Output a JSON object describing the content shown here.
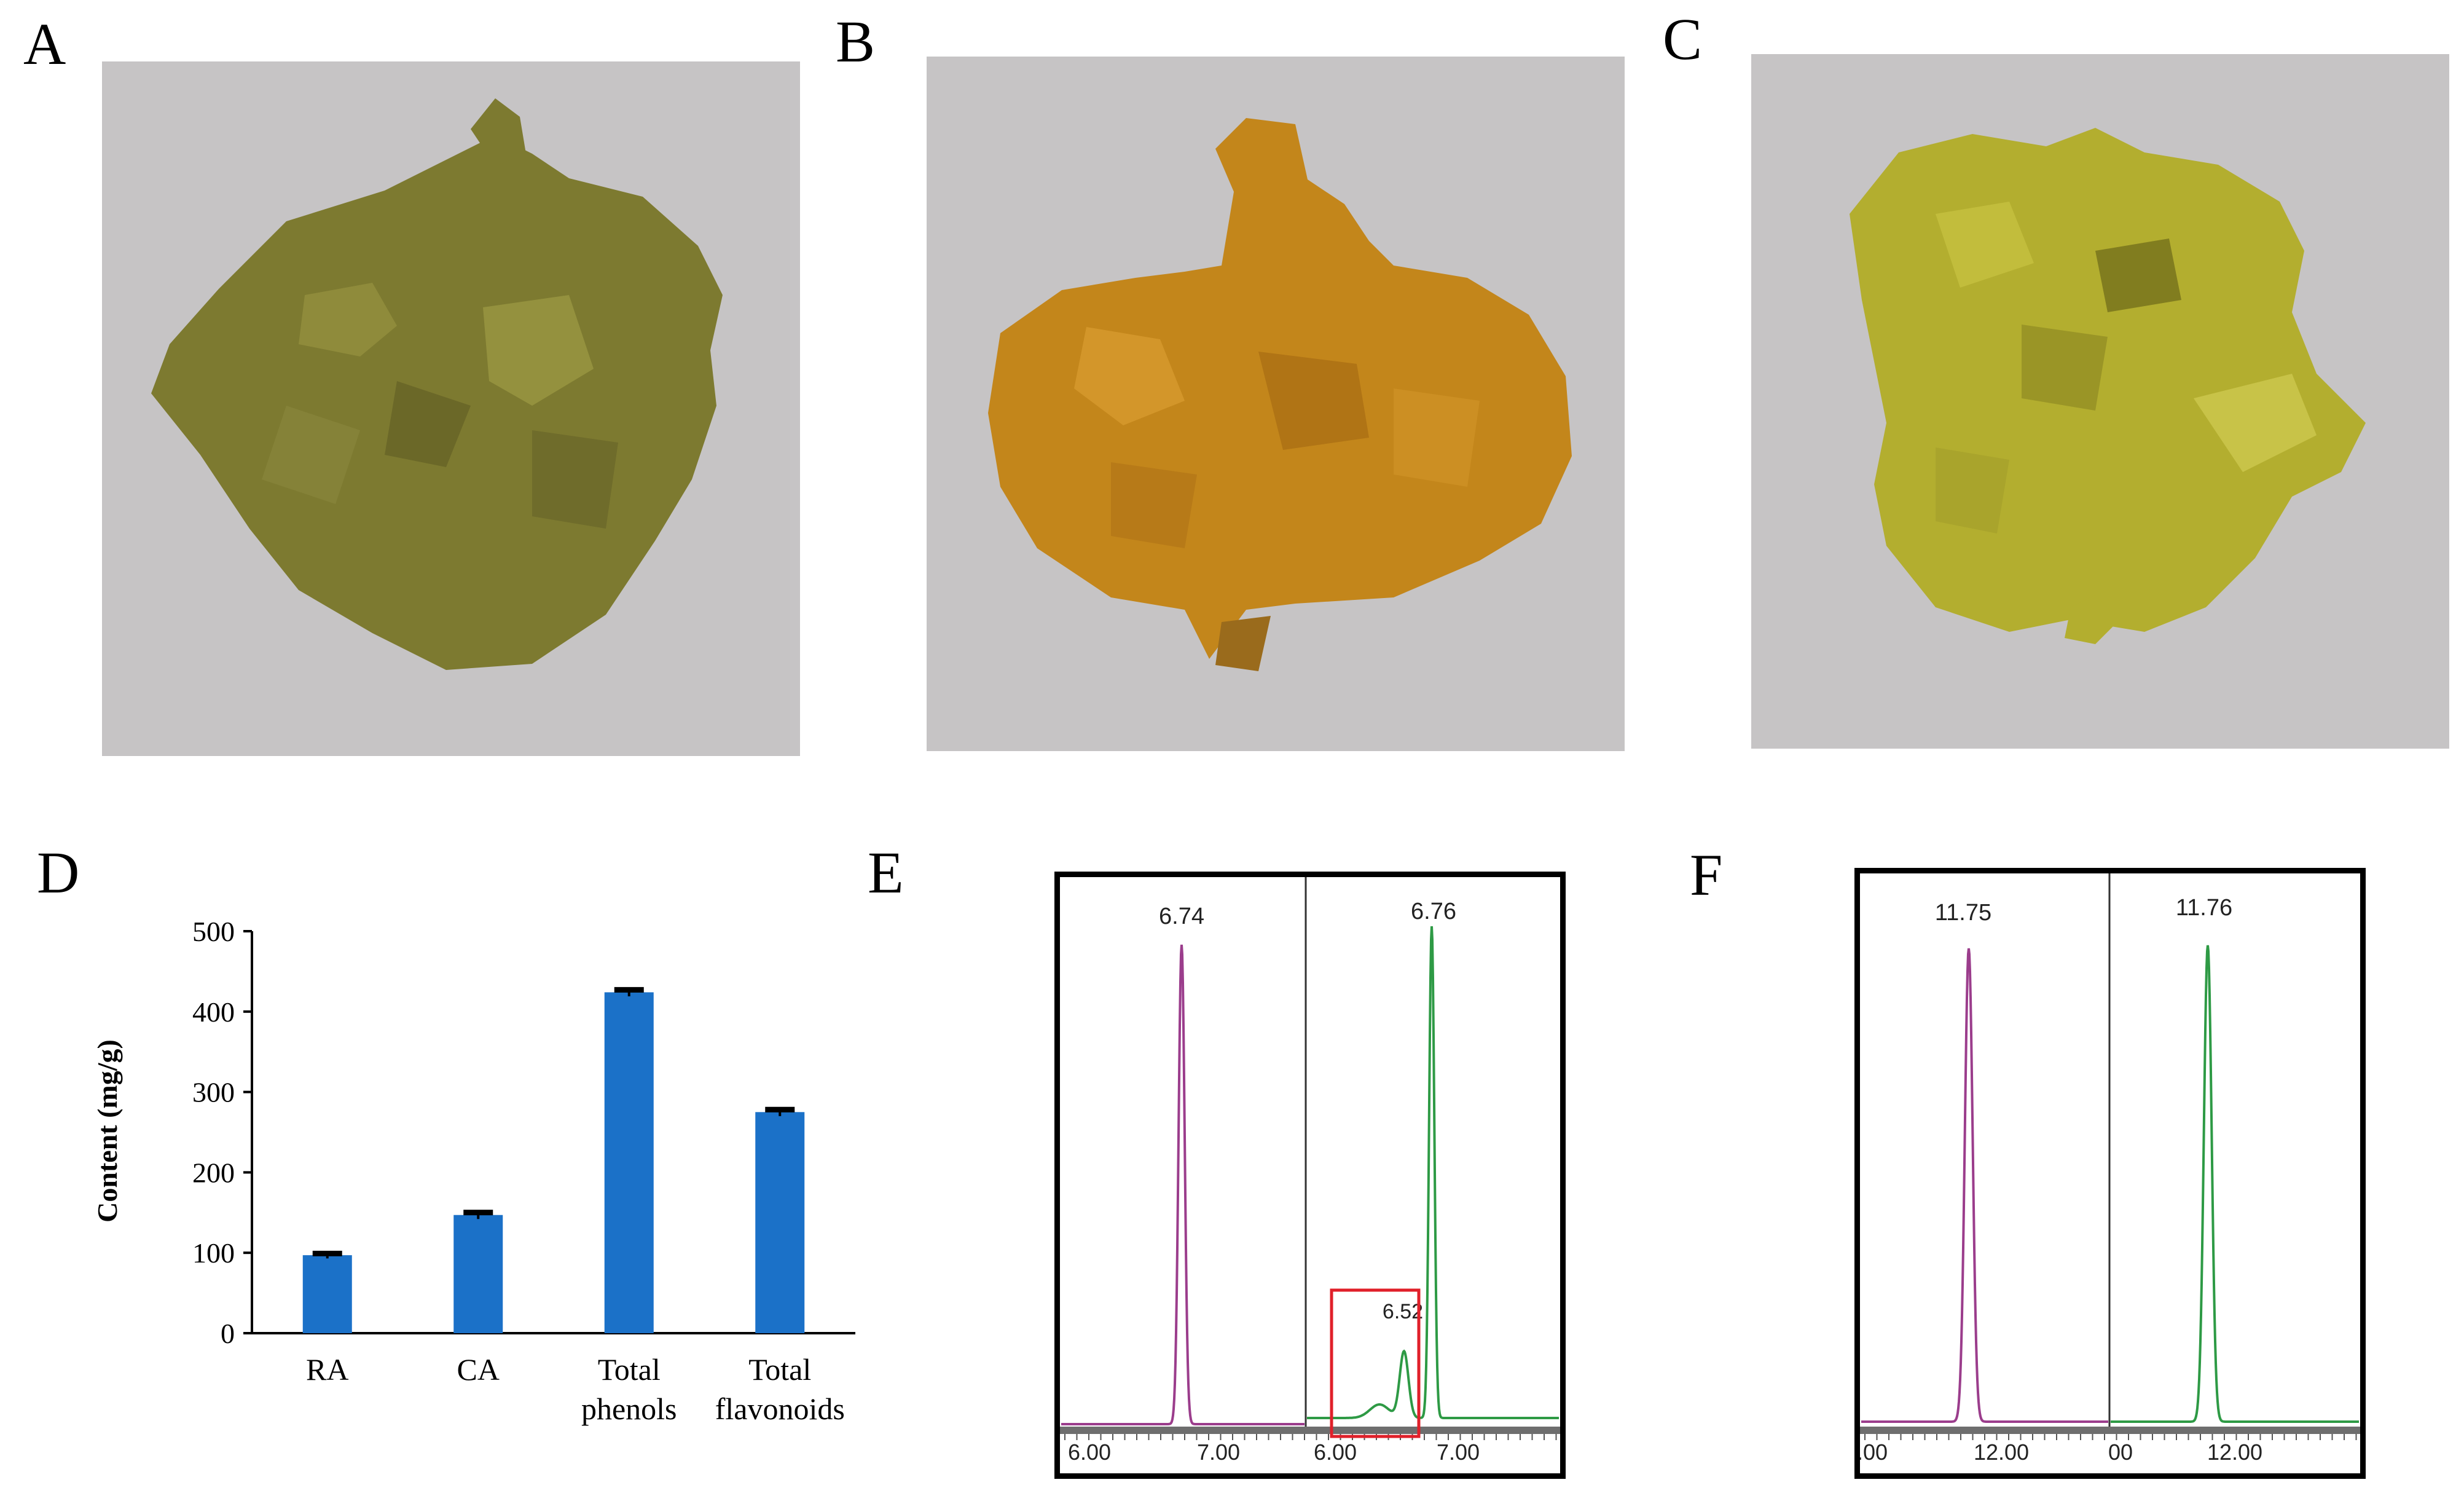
{
  "panels": {
    "a": "A",
    "b": "B",
    "c": "C",
    "d": "D",
    "e": "E",
    "f": "F"
  },
  "colors": {
    "photo_background": "#c6c4c5",
    "powder_a": "#7d7a30",
    "powder_b": "#c3861b",
    "powder_c": "#b3ae2f",
    "bar": "#1b71c8",
    "trace_standard": "#9b3d8c",
    "trace_sample": "#2e9a45",
    "highlight_box": "#e0202a"
  },
  "chart_data": [
    {
      "type": "bar",
      "panel": "D",
      "categories": [
        "RA",
        "CA",
        "Total phenols",
        "Total flavonoids"
      ],
      "category_lines": [
        [
          "RA"
        ],
        [
          "CA"
        ],
        [
          "Total",
          "phenols"
        ],
        [
          "Total",
          "flavonoids"
        ]
      ],
      "values": [
        97,
        147,
        424,
        275
      ],
      "errors": [
        4,
        5,
        5,
        5
      ],
      "ylabel": "Content (mg/g)",
      "ylim": [
        0,
        500
      ],
      "yticks": [
        "0",
        "100",
        "200",
        "300",
        "400",
        "500"
      ],
      "grid": false
    },
    {
      "type": "line",
      "panel": "E",
      "subplots": [
        {
          "trace": "standard",
          "peaks": [
            {
              "rt": 6.74,
              "label": "6.74"
            }
          ],
          "xticks": [
            "6.00",
            "7.00"
          ]
        },
        {
          "trace": "sample",
          "peaks": [
            {
              "rt": 6.52,
              "label": "6.52"
            },
            {
              "rt": 6.76,
              "label": "6.76"
            }
          ],
          "xticks": [
            "6.00",
            "7.00"
          ],
          "highlighted_peak": "6.52"
        }
      ]
    },
    {
      "type": "line",
      "panel": "F",
      "subplots": [
        {
          "trace": "standard",
          "peaks": [
            {
              "rt": 11.75,
              "label": "11.75"
            }
          ],
          "xticks": [
            ".00",
            "12.00"
          ]
        },
        {
          "trace": "sample",
          "peaks": [
            {
              "rt": 11.76,
              "label": "11.76"
            }
          ],
          "xticks": [
            "00",
            "12.00"
          ]
        }
      ]
    }
  ]
}
